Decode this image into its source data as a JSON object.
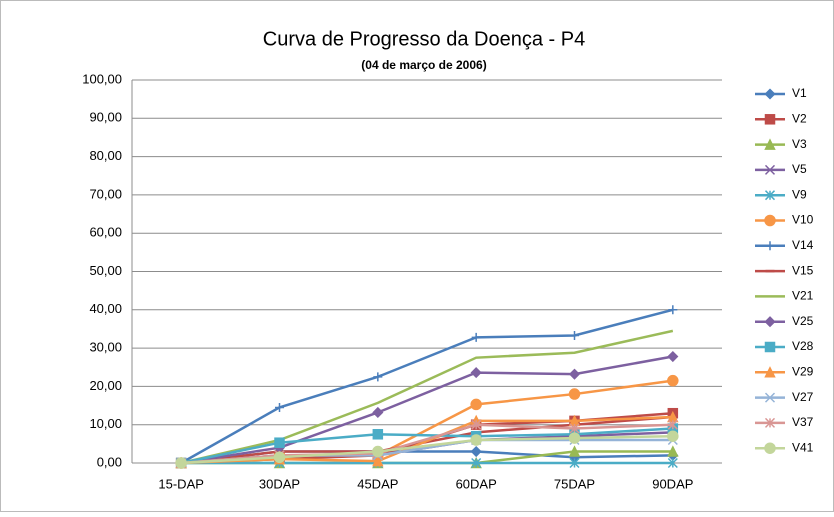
{
  "chart_data": {
    "type": "line",
    "title": "Curva de Progresso da Doença - P4",
    "subtitle": "(04 de março de 2006)",
    "categories": [
      "15-DAP",
      "30DAP",
      "45DAP",
      "60DAP",
      "75DAP",
      "90DAP"
    ],
    "ylim": [
      0,
      100
    ],
    "yticks": [
      {
        "value": 0,
        "label": "0,00"
      },
      {
        "value": 10,
        "label": "10,00"
      },
      {
        "value": 20,
        "label": "20,00"
      },
      {
        "value": 30,
        "label": "30,00"
      },
      {
        "value": 40,
        "label": "40,00"
      },
      {
        "value": 50,
        "label": "50,00"
      },
      {
        "value": 60,
        "label": "60,00"
      },
      {
        "value": 70,
        "label": "70,00"
      },
      {
        "value": 80,
        "label": "80,00"
      },
      {
        "value": 90,
        "label": "90,00"
      },
      {
        "value": 100,
        "label": "100,00"
      }
    ],
    "grid": true,
    "legend": "right",
    "series": [
      {
        "name": "V1",
        "color": "#4a7ebb",
        "marker": "diamond",
        "values": [
          0,
          3,
          3,
          3,
          1.5,
          2
        ]
      },
      {
        "name": "V2",
        "color": "#be4b48",
        "marker": "square",
        "values": [
          0,
          1,
          2,
          10,
          11,
          13
        ]
      },
      {
        "name": "V3",
        "color": "#98b954",
        "marker": "triangle",
        "values": [
          0,
          0,
          0,
          0,
          3,
          3
        ]
      },
      {
        "name": "V5",
        "color": "#7d60a0",
        "marker": "x",
        "values": [
          0,
          2,
          2,
          6,
          7,
          8
        ]
      },
      {
        "name": "V9",
        "color": "#4bacc6",
        "marker": "star",
        "values": [
          0,
          0,
          0,
          0,
          0,
          0
        ]
      },
      {
        "name": "V10",
        "color": "#f79646",
        "marker": "circle",
        "values": [
          0,
          2,
          2,
          15.3,
          18,
          21.5
        ]
      },
      {
        "name": "V14",
        "color": "#4a7ebb",
        "marker": "plus",
        "values": [
          0,
          14.5,
          22.5,
          32.8,
          33.3,
          40
        ]
      },
      {
        "name": "V15",
        "color": "#be4b48",
        "marker": "dash",
        "values": [
          0,
          3,
          3,
          8,
          10,
          12
        ]
      },
      {
        "name": "V21",
        "color": "#9bbb59",
        "marker": "none",
        "values": [
          0,
          6,
          15.7,
          27.5,
          28.8,
          34.5
        ]
      },
      {
        "name": "V25",
        "color": "#7d60a0",
        "marker": "diamond",
        "values": [
          0,
          4,
          13.2,
          23.6,
          23.2,
          27.8
        ]
      },
      {
        "name": "V28",
        "color": "#4bacc6",
        "marker": "square",
        "values": [
          0,
          5.3,
          7.5,
          7,
          7.5,
          9
        ]
      },
      {
        "name": "V29",
        "color": "#f79646",
        "marker": "triangle",
        "values": [
          0,
          1,
          0.5,
          11,
          11,
          12
        ]
      },
      {
        "name": "V27",
        "color": "#95b3d7",
        "marker": "x",
        "values": [
          0,
          2,
          2,
          6,
          6,
          6
        ]
      },
      {
        "name": "V37",
        "color": "#d99694",
        "marker": "star",
        "values": [
          0,
          2,
          2.5,
          10,
          9,
          10
        ]
      },
      {
        "name": "V41",
        "color": "#c3d69b",
        "marker": "circle",
        "values": [
          0,
          1.5,
          3,
          6,
          6.5,
          7
        ]
      }
    ]
  }
}
